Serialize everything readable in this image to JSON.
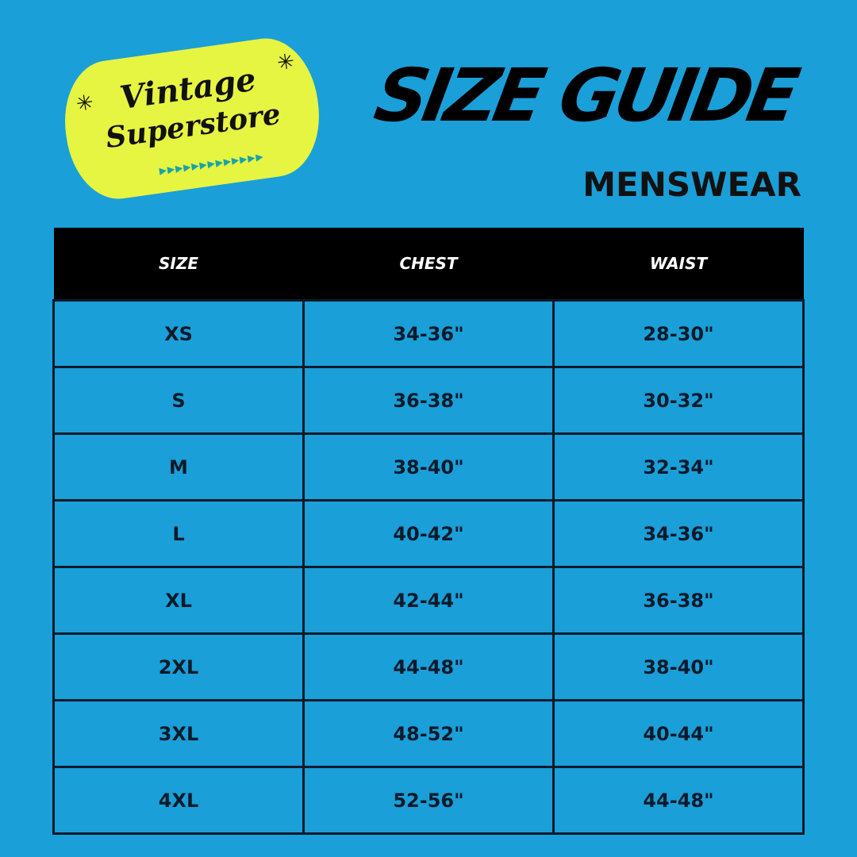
{
  "logo": {
    "line1": "Vintage",
    "line2": "Superstore"
  },
  "header": {
    "title": "SIZE GUIDE",
    "subtitle": "MENSWEAR"
  },
  "colors": {
    "background": "#1a9fd8",
    "logo_bg": "#e6f542",
    "header_bg": "#000000"
  },
  "table": {
    "columns": [
      "SIZE",
      "CHEST",
      "WAIST"
    ],
    "rows": [
      [
        "XS",
        "34-36\"",
        "28-30\""
      ],
      [
        "S",
        "36-38\"",
        "30-32\""
      ],
      [
        "M",
        "38-40\"",
        "32-34\""
      ],
      [
        "L",
        "40-42\"",
        "34-36\""
      ],
      [
        "XL",
        "42-44\"",
        "36-38\""
      ],
      [
        "2XL",
        "44-48\"",
        "38-40\""
      ],
      [
        "3XL",
        "48-52\"",
        "40-44\""
      ],
      [
        "4XL",
        "52-56\"",
        "44-48\""
      ]
    ]
  }
}
